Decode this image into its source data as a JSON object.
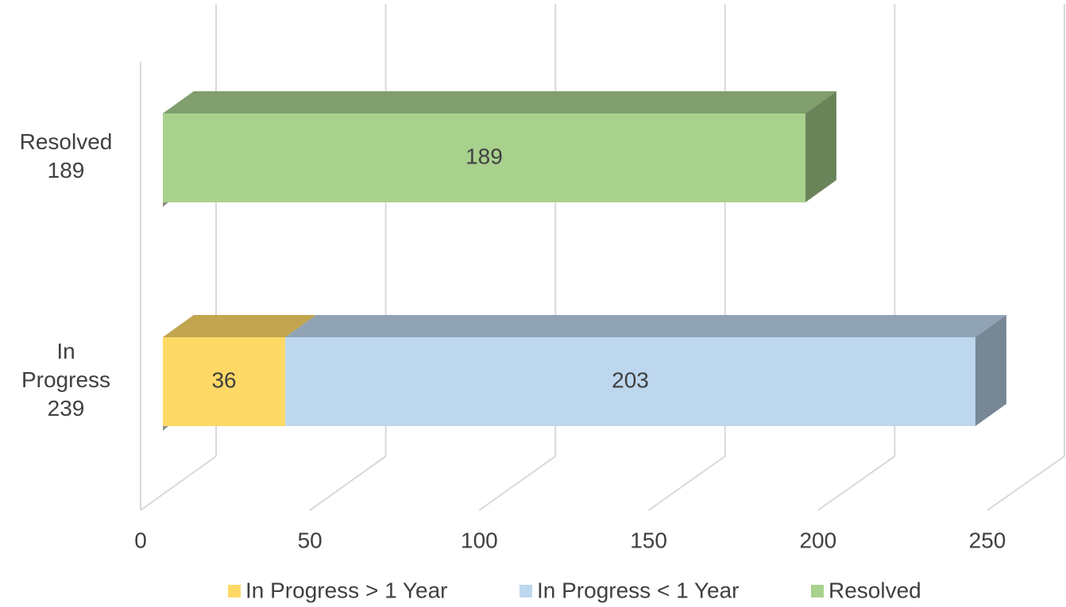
{
  "chart_data": {
    "type": "bar3d_stacked_horizontal",
    "categories": [
      "Resolved 189",
      "In Progress 239"
    ],
    "series": [
      {
        "name": "In Progress > 1 Year",
        "color": "#ffd966",
        "values": [
          null,
          36
        ]
      },
      {
        "name": "In Progress < 1 Year",
        "color": "#bdd7ee",
        "values": [
          null,
          203
        ]
      },
      {
        "name": "Resolved",
        "color": "#a9d18e",
        "values": [
          189,
          null
        ]
      }
    ],
    "xlim": [
      0,
      250
    ],
    "xticks": [
      0,
      50,
      100,
      150,
      200,
      250
    ],
    "grid": true,
    "legend": "bottom"
  }
}
